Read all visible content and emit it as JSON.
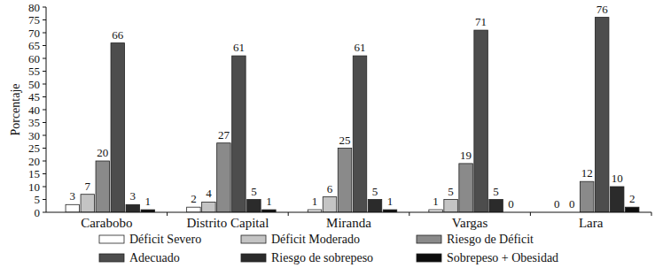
{
  "chart_data": {
    "type": "bar",
    "y_label": "Porcentaje",
    "categories": [
      "Carabobo",
      "Distrito Capital",
      "Miranda",
      "Vargas",
      "Lara"
    ],
    "series": [
      {
        "name": "Déficit Severo",
        "color": "#ffffff",
        "values": [
          3,
          2,
          1,
          1,
          0
        ]
      },
      {
        "name": "Déficit Moderado",
        "color": "#c4c4c4",
        "values": [
          7,
          4,
          6,
          5,
          0
        ]
      },
      {
        "name": "Riesgo de Déficit",
        "color": "#8a8a8a",
        "values": [
          20,
          27,
          25,
          19,
          12
        ]
      },
      {
        "name": "Adecuado",
        "color": "#4d4d4d",
        "values": [
          66,
          61,
          61,
          71,
          76
        ]
      },
      {
        "name": "Riesgo de sobrepeso",
        "color": "#2b2b2b",
        "values": [
          3,
          5,
          5,
          5,
          10
        ]
      },
      {
        "name": "Sobrepeso + Obesidad",
        "color": "#0d0d0d",
        "values": [
          1,
          1,
          1,
          0,
          2
        ]
      }
    ],
    "ylim": [
      0,
      80
    ],
    "yticks": [
      0,
      5,
      10,
      15,
      20,
      25,
      30,
      35,
      40,
      45,
      50,
      55,
      60,
      65,
      70,
      75,
      80
    ],
    "grid": false,
    "data_labels": true,
    "legend": "bottom"
  }
}
